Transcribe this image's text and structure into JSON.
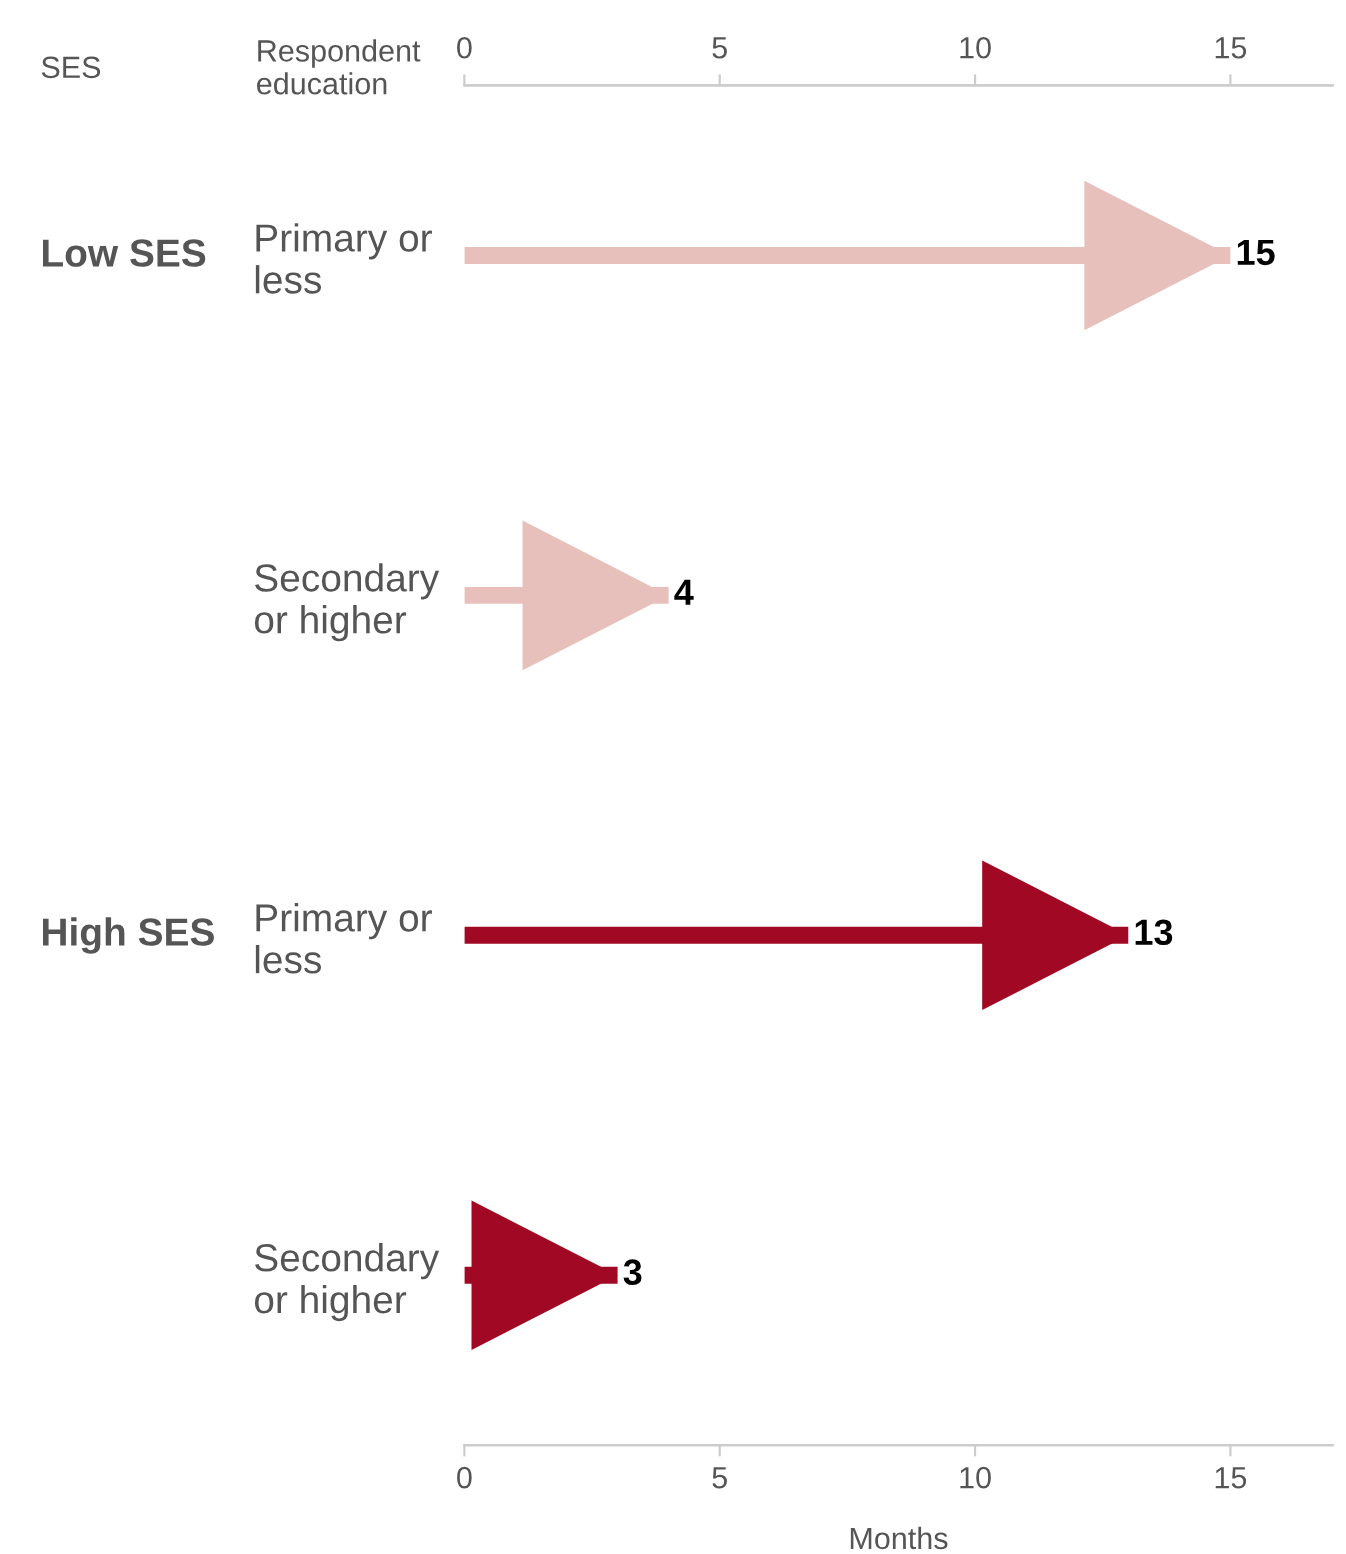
{
  "chart_data": {
    "type": "bar",
    "orientation": "horizontal",
    "categories": [
      "Primary or less",
      "Secondary or higher",
      "Primary or less",
      "Secondary or higher"
    ],
    "values": [
      15,
      4,
      13,
      3
    ],
    "colors": [
      "#e8c0bb",
      "#e8c0bb",
      "#a00824",
      "#a00824"
    ],
    "data_labels": true,
    "xlabel": "Months",
    "xlim": [
      0,
      17
    ],
    "xticks": [
      0,
      5,
      10,
      15
    ],
    "x2lim": [
      0,
      17
    ],
    "x2ticks": [
      0,
      5,
      10,
      15
    ],
    "annotations": [
      "SES",
      "Respondent education",
      "Low SES",
      "High SES"
    ],
    "grid": false,
    "legend": false
  }
}
